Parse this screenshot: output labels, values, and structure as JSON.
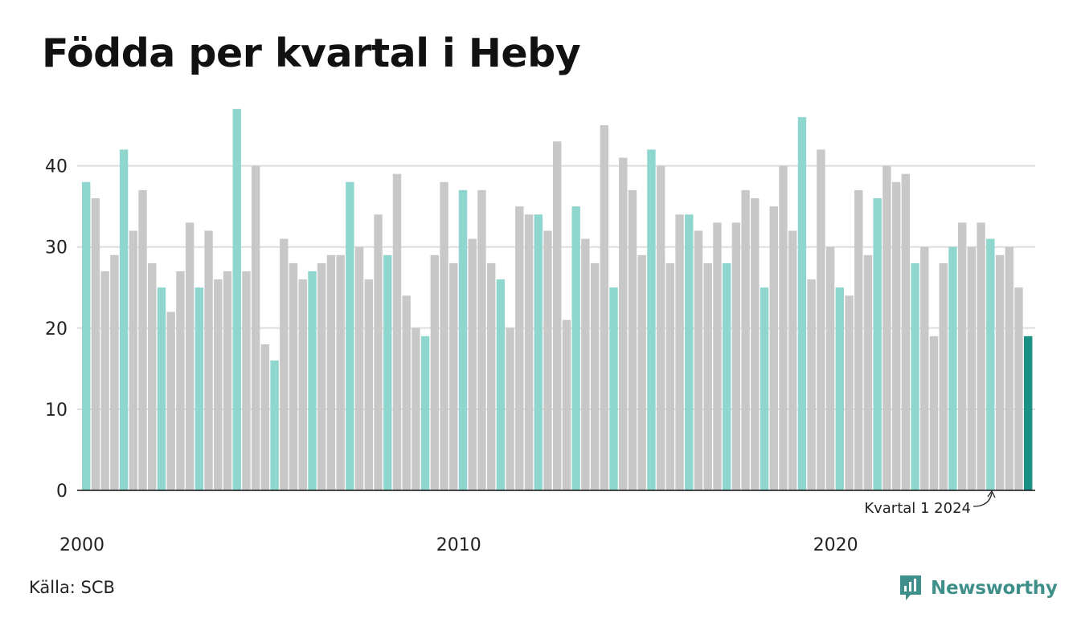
{
  "chart_data": {
    "type": "bar",
    "title": "Födda per kvartal i Heby",
    "xlabel": "",
    "ylabel": "",
    "ylim": [
      0,
      48
    ],
    "yticks": [
      0,
      10,
      20,
      30,
      40
    ],
    "xtick_labels": [
      {
        "label": "2000",
        "index": 0
      },
      {
        "label": "2010",
        "index": 40
      },
      {
        "label": "2020",
        "index": 80
      }
    ],
    "grid": true,
    "values": [
      38,
      36,
      27,
      29,
      42,
      32,
      37,
      28,
      25,
      22,
      27,
      33,
      25,
      32,
      26,
      27,
      47,
      27,
      40,
      18,
      16,
      31,
      28,
      26,
      27,
      28,
      29,
      29,
      38,
      30,
      26,
      34,
      29,
      39,
      24,
      20,
      19,
      29,
      38,
      28,
      37,
      31,
      37,
      28,
      26,
      20,
      35,
      34,
      34,
      32,
      43,
      21,
      35,
      31,
      28,
      45,
      25,
      41,
      37,
      29,
      42,
      40,
      28,
      34,
      34,
      32,
      28,
      33,
      28,
      33,
      37,
      36,
      25,
      35,
      40,
      32,
      46,
      26,
      42,
      30,
      25,
      24,
      37,
      29,
      36,
      40,
      38,
      39,
      28,
      30,
      19,
      28,
      30,
      33,
      30,
      33,
      31,
      29,
      30,
      25,
      19
    ],
    "colors": {
      "q1": "#8fd6ce",
      "other": "#c8c8c8",
      "latest": "#1b9185",
      "grid": "#dddddd",
      "axis": "#111111"
    },
    "annotation": "Kvartal 1 2024"
  },
  "footer": {
    "source": "Källa: SCB",
    "brand": "Newsworthy"
  }
}
